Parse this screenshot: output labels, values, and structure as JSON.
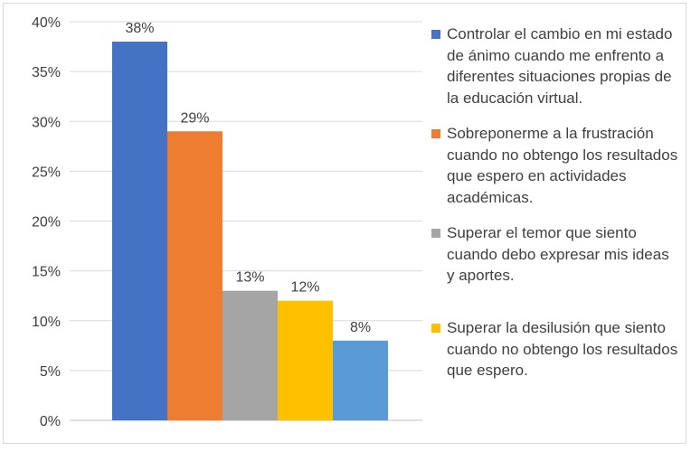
{
  "chart_data": {
    "type": "bar",
    "title": "",
    "xlabel": "",
    "ylabel": "",
    "ylim": [
      0,
      0.4
    ],
    "y_ticks": [
      "0%",
      "5%",
      "10%",
      "15%",
      "20%",
      "25%",
      "30%",
      "35%",
      "40%"
    ],
    "grid": true,
    "legend_position": "right",
    "series": [
      {
        "name": "Controlar el cambio en mi estado de ánimo cuando me enfrento a diferentes situaciones propias de la educación virtual.",
        "value": 0.38,
        "label": "38%",
        "color": "#4472c4"
      },
      {
        "name": "Sobreponerme a la frustración cuando no obtengo los resultados que espero en actividades académicas.",
        "value": 0.29,
        "label": "29%",
        "color": "#ed7d31"
      },
      {
        "name": "Superar el temor que siento cuando debo expresar mis ideas y aportes.",
        "value": 0.13,
        "label": "13%",
        "color": "#a5a5a5"
      },
      {
        "name": "Superar la desilusión que siento cuando no obtengo los resultados que espero.",
        "value": 0.12,
        "label": "12%",
        "color": "#ffc000"
      },
      {
        "name": "",
        "value": 0.08,
        "label": "8%",
        "color": "#5b9bd5"
      }
    ]
  }
}
